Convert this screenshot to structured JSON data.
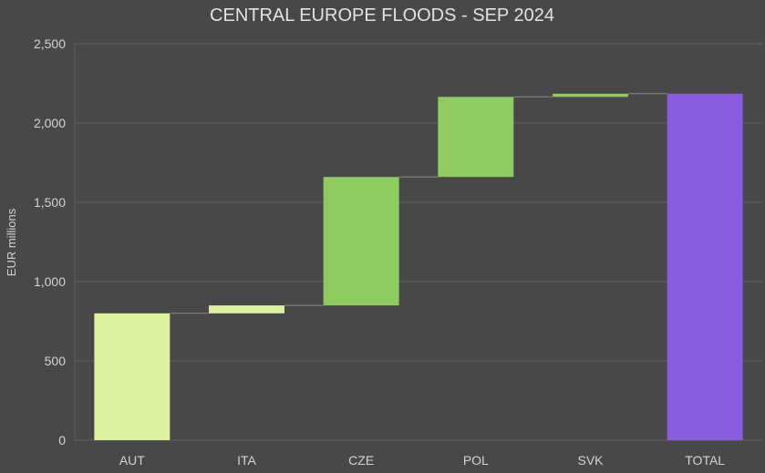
{
  "chart_data": {
    "type": "waterfall",
    "title": "CENTRAL EUROPE FLOODS - SEP 2024",
    "xlabel": "",
    "ylabel": "EUR millions",
    "ylim": [
      0,
      2500
    ],
    "yticks": [
      0,
      500,
      1000,
      1500,
      2000,
      2500
    ],
    "ytick_labels": [
      "0",
      "500",
      "1,000",
      "1,500",
      "2,000",
      "2,500"
    ],
    "grid": true,
    "categories": [
      "AUT",
      "ITA",
      "CZE",
      "POL",
      "SVK",
      "TOTAL"
    ],
    "increments": [
      800,
      50,
      810,
      505,
      20,
      2185
    ],
    "is_total": [
      false,
      false,
      false,
      false,
      false,
      true
    ],
    "colors": {
      "background": "#484848",
      "grid": "#5f5f5f",
      "first_bar": "#dcf0a0",
      "small_increase": "#dcf0a0",
      "increase": "#8fcb60",
      "total": "#8a5ce0",
      "connector": "#8a8a8a"
    }
  }
}
